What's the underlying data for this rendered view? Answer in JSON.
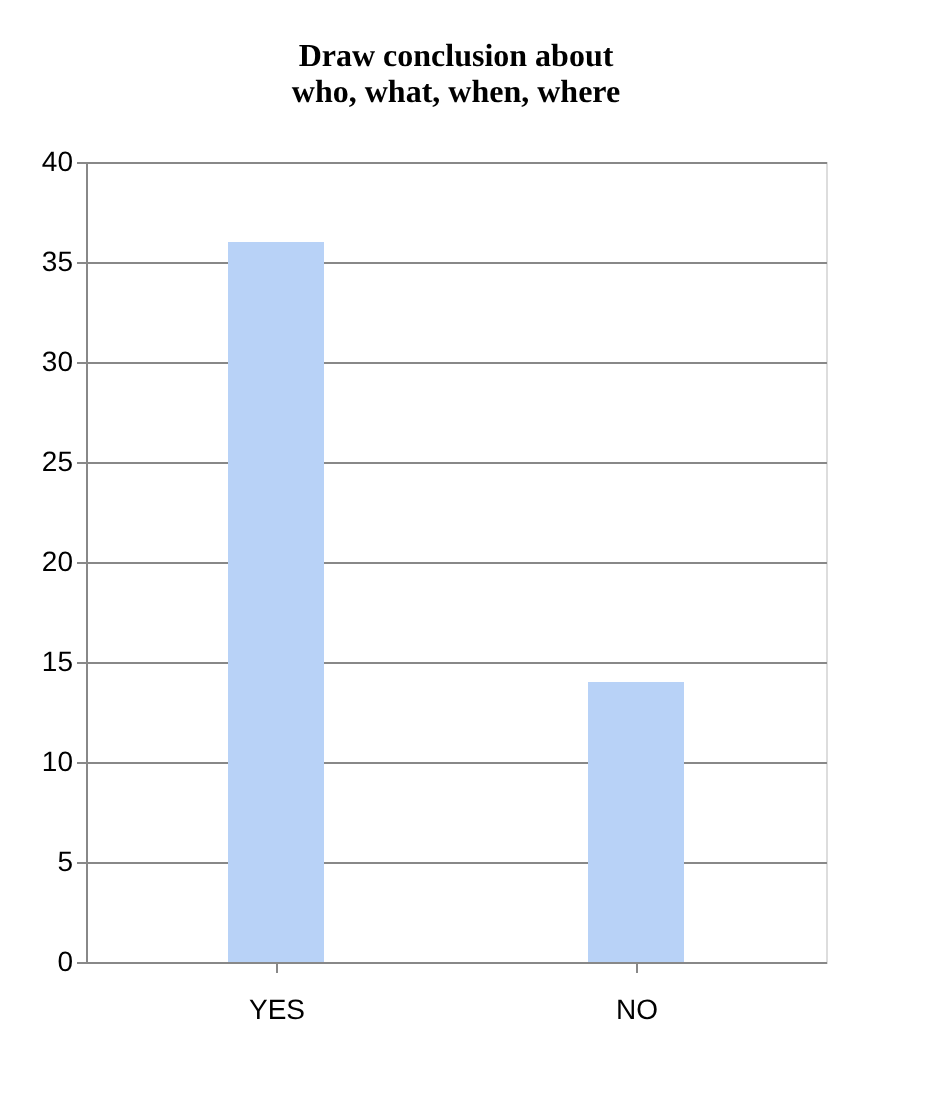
{
  "chart_data": {
    "type": "bar",
    "title": "Draw conclusion about\nwho, what, when, where",
    "categories": [
      "YES",
      "NO"
    ],
    "values": [
      36,
      14
    ],
    "color": "#b8d2f7",
    "ylim": [
      0,
      40
    ],
    "yticks": [
      0,
      5,
      10,
      15,
      20,
      25,
      30,
      35,
      40
    ],
    "grid": "y"
  }
}
